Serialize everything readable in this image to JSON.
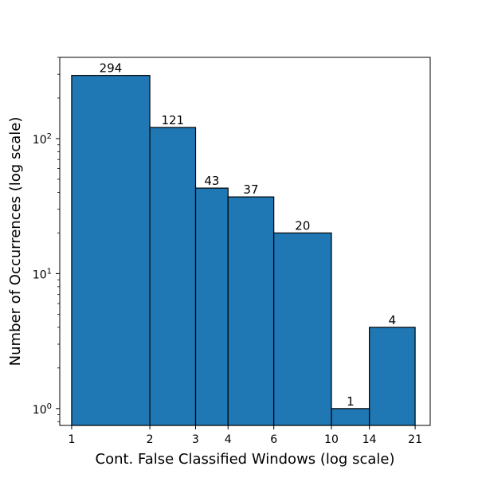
{
  "chart_data": {
    "type": "bar",
    "title": "",
    "xlabel": "Cont. False Classified Windows (log scale)",
    "ylabel": "Number of Occurrences (log scale)",
    "x_scale": "log",
    "y_scale": "log",
    "xlim": [
      0.9,
      24
    ],
    "ylim": [
      0.75,
      400
    ],
    "bins": [
      {
        "start": 1,
        "end": 2,
        "value": 294
      },
      {
        "start": 2,
        "end": 3,
        "value": 121
      },
      {
        "start": 3,
        "end": 4,
        "value": 43
      },
      {
        "start": 4,
        "end": 6,
        "value": 37
      },
      {
        "start": 6,
        "end": 10,
        "value": 20
      },
      {
        "start": 10,
        "end": 14,
        "value": 1
      },
      {
        "start": 14,
        "end": 21,
        "value": 4
      }
    ],
    "x_ticks": [
      1,
      2,
      3,
      4,
      6,
      10,
      14,
      21
    ],
    "x_tick_labels": [
      "1",
      "2",
      "3",
      "4",
      "6",
      "10",
      "14",
      "21"
    ],
    "y_ticks": [
      {
        "value": 1,
        "base": "10",
        "exp": "0"
      },
      {
        "value": 10,
        "base": "10",
        "exp": "1"
      },
      {
        "value": 100,
        "base": "10",
        "exp": "2"
      }
    ],
    "bar_labels": [
      "294",
      "121",
      "43",
      "37",
      "20",
      "1",
      "4"
    ],
    "grid": false,
    "legend": false,
    "colors": {
      "bar_fill": "#1f77b4",
      "bar_edge": "#000000"
    }
  }
}
